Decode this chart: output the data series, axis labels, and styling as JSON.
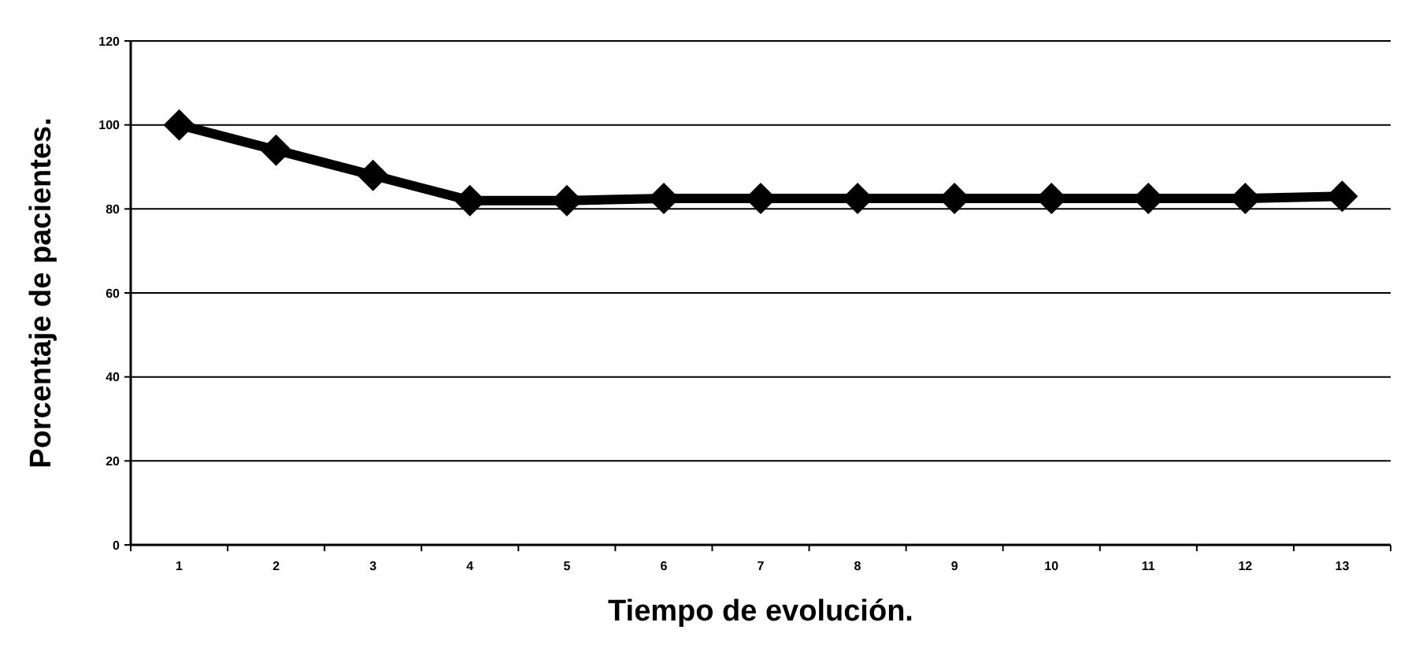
{
  "chart_data": {
    "type": "line",
    "xlabel": "Tiempo de evolución.",
    "ylabel": "Porcentaje de pacientes.",
    "categories": [
      "1",
      "2",
      "3",
      "4",
      "5",
      "6",
      "7",
      "8",
      "9",
      "10",
      "11",
      "12",
      "13"
    ],
    "series": [
      {
        "color": "#000000",
        "values": [
          100,
          94,
          88,
          82,
          82,
          82.5,
          82.5,
          82.5,
          82.5,
          82.5,
          82.5,
          82.5,
          83
        ]
      }
    ],
    "ylim": [
      0,
      120
    ],
    "yticks": [
      0,
      20,
      40,
      60,
      80,
      100,
      120
    ],
    "grid": "y",
    "marker": "diamond",
    "line_style": "solid"
  }
}
